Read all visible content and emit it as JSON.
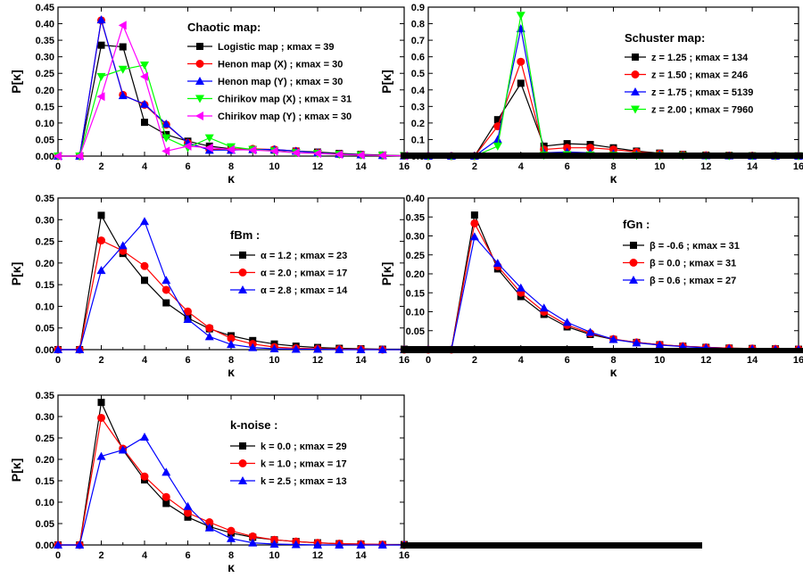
{
  "chart_data": [
    {
      "type": "line",
      "legend_title": "Chaotic map:",
      "xlabel": "κ",
      "ylabel": "P[κ]",
      "xlim": [
        0,
        16
      ],
      "ylim": [
        0,
        0.45
      ],
      "x_ticks": [
        0,
        2,
        4,
        6,
        8,
        10,
        12,
        14,
        16
      ],
      "y_ticks": [
        0.0,
        0.05,
        0.1,
        0.15,
        0.2,
        0.25,
        0.3,
        0.35,
        0.4,
        0.45
      ],
      "y_tick_labels": [
        "0.00",
        "0.05",
        "0.10",
        "0.15",
        "0.20",
        "0.25",
        "0.30",
        "0.35",
        "0.40",
        "0.45"
      ],
      "x": [
        0,
        1,
        2,
        3,
        4,
        5,
        6,
        7,
        8,
        9,
        10,
        11,
        12,
        13,
        14,
        15,
        16
      ],
      "series": [
        {
          "name": "Logistic map",
          "kmax_label": "; κmax = 39",
          "color": "#000000",
          "marker": "square",
          "values": [
            0,
            0,
            0.335,
            0.33,
            0.102,
            0.065,
            0.045,
            0.03,
            0.022,
            0.02,
            0.018,
            0.015,
            0.012,
            0.008,
            0.005,
            0.003,
            0.001
          ]
        },
        {
          "name": "Henon map (X)",
          "kmax_label": "; κmax = 30",
          "color": "#ff0000",
          "marker": "circle",
          "values": [
            0,
            0,
            0.41,
            0.185,
            0.155,
            0.095,
            0.04,
            0.02,
            0.02,
            0.022,
            0.02,
            0.015,
            0.01,
            0.006,
            0.004,
            0.002,
            0.001
          ]
        },
        {
          "name": "Henon map (Y)",
          "kmax_label": "; κmax = 30",
          "color": "#0000ff",
          "marker": "triangle-up",
          "values": [
            0,
            0,
            0.412,
            0.183,
            0.157,
            0.097,
            0.04,
            0.018,
            0.018,
            0.02,
            0.02,
            0.015,
            0.01,
            0.006,
            0.004,
            0.002,
            0.001
          ]
        },
        {
          "name": "Chirikov map (X)",
          "kmax_label": "; κmax = 31",
          "color": "#00ff00",
          "marker": "triangle-down",
          "values": [
            0,
            0,
            0.24,
            0.262,
            0.275,
            0.055,
            0.025,
            0.055,
            0.028,
            0.02,
            0.015,
            0.01,
            0.008,
            0.005,
            0.003,
            0.002,
            0.001
          ]
        },
        {
          "name": "Chirikov map (Y)",
          "kmax_label": "; κmax = 30",
          "color": "#ff00ff",
          "marker": "triangle-left",
          "values": [
            0,
            0,
            0.18,
            0.395,
            0.24,
            0.015,
            0.03,
            0.025,
            0.02,
            0.018,
            0.015,
            0.01,
            0.008,
            0.005,
            0.003,
            0.002,
            0.001
          ]
        }
      ]
    },
    {
      "type": "line",
      "legend_title": "Schuster map:",
      "xlabel": "κ",
      "ylabel": "P[κ]",
      "xlim": [
        0,
        16
      ],
      "ylim": [
        0,
        0.9
      ],
      "x_ticks": [
        0,
        2,
        4,
        6,
        8,
        10,
        12,
        14,
        16
      ],
      "y_ticks": [
        0.0,
        0.1,
        0.2,
        0.3,
        0.4,
        0.5,
        0.6,
        0.7,
        0.8,
        0.9
      ],
      "y_tick_labels": [
        "0.0",
        "0.1",
        "0.2",
        "0.3",
        "0.4",
        "0.5",
        "0.6",
        "0.7",
        "0.8",
        "0.9"
      ],
      "x": [
        0,
        1,
        2,
        3,
        4,
        5,
        6,
        7,
        8,
        9,
        10,
        11,
        12,
        13,
        14,
        15,
        16
      ],
      "series": [
        {
          "name": "z = 1.25",
          "kmax_label": "; κmax =   134",
          "color": "#000000",
          "marker": "square",
          "values": [
            0,
            0,
            0,
            0.22,
            0.44,
            0.06,
            0.075,
            0.07,
            0.05,
            0.03,
            0.018,
            0.01,
            0.006,
            0.004,
            0.002,
            0.001,
            0.001
          ]
        },
        {
          "name": "z = 1.50",
          "kmax_label": "; κmax =   246",
          "color": "#ff0000",
          "marker": "circle",
          "values": [
            0,
            0,
            0,
            0.18,
            0.57,
            0.04,
            0.05,
            0.05,
            0.04,
            0.025,
            0.015,
            0.008,
            0.005,
            0.003,
            0.002,
            0.001,
            0.001
          ]
        },
        {
          "name": "z = 1.75",
          "kmax_label": "; κmax = 5139",
          "color": "#0000ff",
          "marker": "triangle-up",
          "values": [
            0,
            0,
            0,
            0.1,
            0.77,
            0.02,
            0.025,
            0.02,
            0.015,
            0.01,
            0.008,
            0.005,
            0.003,
            0.002,
            0.001,
            0.001,
            0.001
          ]
        },
        {
          "name": "z = 2.00",
          "kmax_label": "; κmax = 7960",
          "color": "#00ff00",
          "marker": "triangle-down",
          "values": [
            0,
            0,
            0,
            0.06,
            0.85,
            0.005,
            0.008,
            0.006,
            0.004,
            0.003,
            0.002,
            0.002,
            0.001,
            0.001,
            0.001,
            0.001,
            0.001
          ]
        }
      ]
    },
    {
      "type": "line",
      "legend_title": "fBm :",
      "xlabel": "κ",
      "ylabel": "P[κ]",
      "xlim": [
        0,
        16
      ],
      "ylim": [
        0,
        0.35
      ],
      "x_ticks": [
        0,
        2,
        4,
        6,
        8,
        10,
        12,
        14,
        16
      ],
      "y_ticks": [
        0.0,
        0.05,
        0.1,
        0.15,
        0.2,
        0.25,
        0.3,
        0.35
      ],
      "y_tick_labels": [
        "0.00",
        "0.05",
        "0.10",
        "0.15",
        "0.20",
        "0.25",
        "0.30",
        "0.35"
      ],
      "x": [
        0,
        1,
        2,
        3,
        4,
        5,
        6,
        7,
        8,
        9,
        10,
        11,
        12,
        13,
        14,
        15,
        16
      ],
      "series": [
        {
          "name": "α = 1.2",
          "kmax_label": "; κmax = 23",
          "color": "#000000",
          "marker": "square",
          "values": [
            0,
            0,
            0.31,
            0.222,
            0.16,
            0.108,
            0.073,
            0.048,
            0.032,
            0.021,
            0.013,
            0.008,
            0.005,
            0.003,
            0.002,
            0.001,
            0.001
          ]
        },
        {
          "name": "α = 2.0",
          "kmax_label": "; κmax = 17",
          "color": "#ff0000",
          "marker": "circle",
          "values": [
            0,
            0,
            0.252,
            0.228,
            0.193,
            0.138,
            0.088,
            0.05,
            0.026,
            0.013,
            0.006,
            0.003,
            0.002,
            0.001,
            0.001,
            0.0,
            0.0
          ]
        },
        {
          "name": "α = 2.8",
          "kmax_label": "; κmax = 14",
          "color": "#0000ff",
          "marker": "triangle-up",
          "values": [
            0,
            0,
            0.183,
            0.24,
            0.296,
            0.16,
            0.07,
            0.03,
            0.012,
            0.005,
            0.002,
            0.001,
            0.001,
            0.0,
            0.0,
            0.0,
            0.0
          ]
        }
      ]
    },
    {
      "type": "line",
      "legend_title": "fGn :",
      "xlabel": "κ",
      "ylabel": "P[κ]",
      "xlim": [
        0,
        16
      ],
      "ylim": [
        0,
        0.4
      ],
      "x_ticks": [
        0,
        2,
        4,
        6,
        8,
        10,
        12,
        14,
        16
      ],
      "y_ticks": [
        0.0,
        0.05,
        0.1,
        0.15,
        0.2,
        0.25,
        0.3,
        0.35,
        0.4
      ],
      "y_tick_labels": [
        "0.00",
        "0.05",
        "0.10",
        "0.15",
        "0.20",
        "0.25",
        "0.30",
        "0.35",
        "0.40"
      ],
      "x": [
        0,
        1,
        2,
        3,
        4,
        5,
        6,
        7,
        8,
        9,
        10,
        11,
        12,
        13,
        14,
        15,
        16
      ],
      "series": [
        {
          "name": "β = -0.6",
          "kmax_label": "; κmax = 31",
          "color": "#000000",
          "marker": "square",
          "values": [
            0,
            0,
            0.355,
            0.213,
            0.14,
            0.093,
            0.06,
            0.04,
            0.027,
            0.019,
            0.013,
            0.009,
            0.006,
            0.004,
            0.003,
            0.002,
            0.001
          ]
        },
        {
          "name": "β =  0.0",
          "kmax_label": "; κmax = 31",
          "color": "#ff0000",
          "marker": "circle",
          "values": [
            0,
            0,
            0.333,
            0.22,
            0.15,
            0.1,
            0.065,
            0.043,
            0.028,
            0.019,
            0.013,
            0.009,
            0.006,
            0.004,
            0.003,
            0.002,
            0.001
          ]
        },
        {
          "name": "β =  0.6",
          "kmax_label": "; κmax = 27",
          "color": "#0000ff",
          "marker": "triangle-up",
          "values": [
            0,
            0,
            0.298,
            0.228,
            0.163,
            0.11,
            0.072,
            0.046,
            0.027,
            0.018,
            0.012,
            0.008,
            0.005,
            0.003,
            0.002,
            0.001,
            0.001
          ]
        }
      ]
    },
    {
      "type": "line",
      "legend_title": "k-noise :",
      "xlabel": "κ",
      "ylabel": "P[κ]",
      "xlim": [
        0,
        16
      ],
      "ylim": [
        0,
        0.35
      ],
      "x_ticks": [
        0,
        2,
        4,
        6,
        8,
        10,
        12,
        14,
        16
      ],
      "y_ticks": [
        0.0,
        0.05,
        0.1,
        0.15,
        0.2,
        0.25,
        0.3,
        0.35
      ],
      "y_tick_labels": [
        "0.00",
        "0.05",
        "0.10",
        "0.15",
        "0.20",
        "0.25",
        "0.30",
        "0.35"
      ],
      "x": [
        0,
        1,
        2,
        3,
        4,
        5,
        6,
        7,
        8,
        9,
        10,
        11,
        12,
        13,
        14,
        15,
        16
      ],
      "series": [
        {
          "name": "k = 0.0",
          "kmax_label": "; κmax = 29",
          "color": "#000000",
          "marker": "square",
          "values": [
            0,
            0,
            0.333,
            0.222,
            0.152,
            0.097,
            0.065,
            0.043,
            0.028,
            0.018,
            0.012,
            0.008,
            0.005,
            0.003,
            0.002,
            0.001,
            0.001
          ]
        },
        {
          "name": "k = 1.0",
          "kmax_label": "; κmax = 17",
          "color": "#ff0000",
          "marker": "circle",
          "values": [
            0,
            0,
            0.297,
            0.225,
            0.16,
            0.112,
            0.075,
            0.053,
            0.033,
            0.02,
            0.012,
            0.008,
            0.005,
            0.003,
            0.002,
            0.001,
            0.0
          ]
        },
        {
          "name": "k = 2.5",
          "kmax_label": "; κmax = 13",
          "color": "#0000ff",
          "marker": "triangle-up",
          "values": [
            0,
            0,
            0.207,
            0.222,
            0.252,
            0.17,
            0.09,
            0.04,
            0.015,
            0.005,
            0.002,
            0.001,
            0.0,
            0.0,
            0.0,
            0.0,
            0.0
          ]
        }
      ]
    }
  ]
}
